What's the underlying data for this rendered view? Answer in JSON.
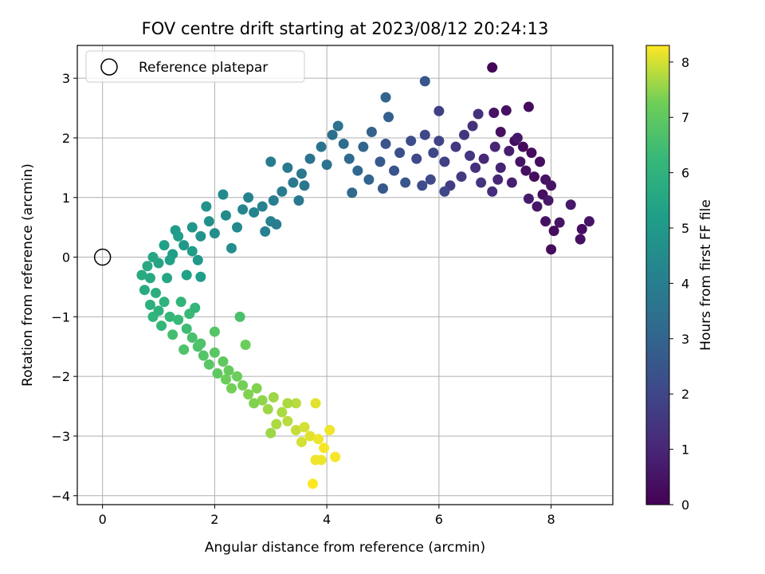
{
  "chart_data": {
    "type": "scatter",
    "title": "FOV centre drift starting at 2023/08/12 20:24:13",
    "xlabel": "Angular distance from reference (arcmin)",
    "ylabel": "Rotation from reference (arcmin)",
    "xlim": [
      -0.45,
      9.1
    ],
    "ylim": [
      -4.15,
      3.55
    ],
    "xticks": [
      0,
      2,
      4,
      6,
      8
    ],
    "yticks": [
      -4,
      -3,
      -2,
      -1,
      0,
      1,
      2,
      3
    ],
    "grid": true,
    "legend": {
      "position": "top-left",
      "entries": [
        "Reference platepar"
      ]
    },
    "reference_point": {
      "x": 0,
      "y": 0
    },
    "colorbar": {
      "label": "Hours from first FF file",
      "range": [
        0,
        8.3
      ],
      "ticks": [
        0,
        1,
        2,
        3,
        4,
        5,
        6,
        7,
        8
      ],
      "colormap": "viridis"
    },
    "series": [
      {
        "color_by": "hours",
        "points": [
          [
            6.95,
            3.18,
            0.1
          ],
          [
            7.6,
            2.52,
            0.3
          ],
          [
            7.2,
            2.46,
            0.4
          ],
          [
            6.98,
            2.42,
            0.5
          ],
          [
            7.1,
            2.1,
            0.4
          ],
          [
            7.35,
            1.95,
            0.3
          ],
          [
            7.5,
            1.85,
            0.2
          ],
          [
            7.65,
            1.75,
            0.25
          ],
          [
            7.8,
            1.6,
            0.35
          ],
          [
            7.45,
            1.6,
            0.5
          ],
          [
            7.55,
            1.45,
            0.4
          ],
          [
            7.7,
            1.35,
            0.3
          ],
          [
            7.9,
            1.3,
            0.45
          ],
          [
            8.0,
            1.2,
            0.5
          ],
          [
            7.85,
            1.05,
            0.35
          ],
          [
            7.95,
            0.95,
            0.6
          ],
          [
            7.75,
            0.85,
            0.55
          ],
          [
            7.9,
            0.6,
            0.4
          ],
          [
            8.15,
            0.58,
            0.5
          ],
          [
            8.35,
            0.88,
            0.6
          ],
          [
            8.05,
            0.44,
            0.3
          ],
          [
            8.55,
            0.47,
            0.35
          ],
          [
            8.68,
            0.6,
            0.5
          ],
          [
            8.52,
            0.3,
            0.4
          ],
          [
            8.0,
            0.13,
            0.3
          ],
          [
            7.6,
            0.98,
            0.7
          ],
          [
            7.3,
            1.25,
            0.8
          ],
          [
            7.4,
            2.0,
            0.6
          ],
          [
            7.25,
            1.78,
            0.75
          ],
          [
            7.1,
            1.5,
            0.9
          ],
          [
            7.0,
            1.85,
            0.95
          ],
          [
            6.8,
            1.65,
            1.0
          ],
          [
            7.05,
            1.3,
            1.0
          ],
          [
            6.95,
            1.1,
            1.2
          ],
          [
            6.7,
            2.4,
            1.3
          ],
          [
            6.6,
            2.2,
            1.3
          ],
          [
            6.45,
            2.05,
            1.4
          ],
          [
            6.3,
            1.85,
            1.5
          ],
          [
            6.55,
            1.7,
            1.5
          ],
          [
            6.65,
            1.5,
            1.3
          ],
          [
            6.4,
            1.35,
            1.6
          ],
          [
            6.75,
            1.25,
            1.4
          ],
          [
            6.2,
            1.2,
            1.7
          ],
          [
            6.1,
            1.6,
            1.8
          ],
          [
            6.0,
            1.95,
            1.9
          ],
          [
            5.9,
            1.75,
            2.0
          ],
          [
            5.75,
            2.05,
            2.0
          ],
          [
            5.6,
            1.65,
            2.1
          ],
          [
            5.5,
            1.95,
            2.2
          ],
          [
            5.85,
            1.3,
            2.1
          ],
          [
            6.1,
            1.1,
            2.0
          ],
          [
            5.3,
            1.75,
            2.3
          ],
          [
            5.2,
            1.45,
            2.4
          ],
          [
            5.05,
            1.9,
            2.4
          ],
          [
            4.95,
            1.6,
            2.6
          ],
          [
            5.4,
            1.25,
            2.5
          ],
          [
            5.0,
            1.15,
            2.6
          ],
          [
            5.7,
            1.2,
            2.2
          ],
          [
            6.0,
            2.45,
            1.8
          ],
          [
            5.75,
            2.95,
            2.5
          ],
          [
            5.05,
            2.68,
            3.0
          ],
          [
            5.1,
            2.35,
            2.8
          ],
          [
            4.8,
            2.1,
            2.9
          ],
          [
            4.65,
            1.85,
            3.0
          ],
          [
            4.4,
            1.65,
            3.2
          ],
          [
            4.55,
            1.45,
            3.1
          ],
          [
            4.75,
            1.3,
            3.0
          ],
          [
            4.3,
            1.9,
            3.3
          ],
          [
            4.1,
            2.05,
            3.4
          ],
          [
            4.45,
            1.08,
            3.2
          ],
          [
            4.0,
            1.55,
            3.5
          ],
          [
            3.9,
            1.85,
            3.6
          ],
          [
            4.2,
            2.2,
            3.5
          ],
          [
            3.7,
            1.65,
            3.6
          ],
          [
            3.55,
            1.4,
            3.7
          ],
          [
            3.4,
            1.25,
            3.8
          ],
          [
            3.2,
            1.1,
            3.9
          ],
          [
            3.05,
            0.95,
            4.0
          ],
          [
            3.3,
            1.5,
            3.8
          ],
          [
            3.6,
            1.2,
            3.7
          ],
          [
            2.85,
            0.85,
            4.1
          ],
          [
            2.6,
            1.0,
            4.2
          ],
          [
            2.7,
            0.75,
            4.2
          ],
          [
            3.0,
            0.6,
            4.1
          ],
          [
            3.1,
            0.55,
            4.0
          ],
          [
            2.9,
            0.43,
            4.1
          ],
          [
            2.5,
            0.8,
            4.3
          ],
          [
            3.0,
            1.6,
            3.9
          ],
          [
            3.5,
            0.95,
            3.8
          ],
          [
            2.4,
            0.5,
            4.4
          ],
          [
            2.2,
            0.7,
            4.5
          ],
          [
            2.0,
            0.4,
            4.6
          ],
          [
            2.3,
            0.15,
            4.6
          ],
          [
            2.15,
            1.05,
            4.5
          ],
          [
            1.9,
            0.6,
            4.7
          ],
          [
            1.75,
            0.35,
            4.8
          ],
          [
            1.6,
            0.5,
            4.9
          ],
          [
            1.45,
            0.2,
            5.0
          ],
          [
            1.3,
            0.45,
            5.1
          ],
          [
            1.25,
            0.05,
            5.2
          ],
          [
            1.1,
            0.2,
            5.3
          ],
          [
            1.2,
            -0.05,
            5.3
          ],
          [
            1.7,
            -0.05,
            5.0
          ],
          [
            1.5,
            -0.3,
            5.3
          ],
          [
            1.0,
            -0.1,
            5.4
          ],
          [
            0.9,
            0.0,
            5.5
          ],
          [
            0.8,
            -0.15,
            5.6
          ],
          [
            0.85,
            -0.35,
            5.6
          ],
          [
            0.7,
            -0.3,
            5.7
          ],
          [
            1.15,
            -0.35,
            5.5
          ],
          [
            1.75,
            -0.33,
            5.2
          ],
          [
            1.85,
            0.85,
            4.8
          ],
          [
            1.6,
            0.1,
            5.1
          ],
          [
            1.35,
            0.35,
            5.2
          ],
          [
            0.75,
            -0.55,
            5.7
          ],
          [
            0.95,
            -0.6,
            5.8
          ],
          [
            0.85,
            -0.8,
            5.9
          ],
          [
            1.0,
            -0.9,
            6.0
          ],
          [
            1.1,
            -0.75,
            6.0
          ],
          [
            0.9,
            -1.0,
            6.1
          ],
          [
            1.05,
            -1.15,
            6.2
          ],
          [
            1.2,
            -1.0,
            6.2
          ],
          [
            1.35,
            -1.05,
            6.3
          ],
          [
            1.5,
            -1.2,
            6.4
          ],
          [
            1.25,
            -1.3,
            6.5
          ],
          [
            1.6,
            -1.35,
            6.6
          ],
          [
            1.7,
            -1.5,
            6.7
          ],
          [
            1.45,
            -1.55,
            6.7
          ],
          [
            1.8,
            -1.65,
            6.8
          ],
          [
            1.9,
            -1.8,
            6.9
          ],
          [
            2.0,
            -1.6,
            6.9
          ],
          [
            2.15,
            -1.75,
            7.0
          ],
          [
            2.05,
            -1.95,
            7.0
          ],
          [
            2.25,
            -1.9,
            7.1
          ],
          [
            2.4,
            -2.0,
            7.2
          ],
          [
            2.5,
            -2.15,
            7.3
          ],
          [
            2.3,
            -2.2,
            7.3
          ],
          [
            2.6,
            -2.3,
            7.4
          ],
          [
            2.75,
            -2.2,
            7.4
          ],
          [
            2.85,
            -2.4,
            7.5
          ],
          [
            2.95,
            -2.55,
            7.6
          ],
          [
            3.05,
            -2.35,
            7.6
          ],
          [
            3.2,
            -2.6,
            7.7
          ],
          [
            3.1,
            -2.8,
            7.7
          ],
          [
            3.3,
            -2.75,
            7.8
          ],
          [
            3.45,
            -2.9,
            7.9
          ],
          [
            3.6,
            -2.85,
            8.0
          ],
          [
            3.55,
            -3.1,
            8.0
          ],
          [
            3.7,
            -3.0,
            8.1
          ],
          [
            3.85,
            -3.05,
            8.2
          ],
          [
            3.95,
            -3.2,
            8.25
          ],
          [
            3.8,
            -3.4,
            8.2
          ],
          [
            3.9,
            -3.4,
            8.2
          ],
          [
            4.15,
            -3.35,
            8.25
          ],
          [
            3.75,
            -3.8,
            8.3
          ],
          [
            4.05,
            -2.9,
            8.2
          ],
          [
            3.8,
            -2.45,
            8.1
          ],
          [
            2.55,
            -1.47,
            7.2
          ],
          [
            1.75,
            -1.45,
            6.7
          ],
          [
            2.45,
            -1.0,
            6.6
          ],
          [
            2.0,
            -1.25,
            6.8
          ],
          [
            1.55,
            -0.95,
            6.3
          ],
          [
            1.65,
            -0.85,
            6.2
          ],
          [
            1.4,
            -0.75,
            6.1
          ],
          [
            3.45,
            -2.45,
            7.8
          ],
          [
            3.3,
            -2.45,
            7.7
          ],
          [
            3.0,
            -2.95,
            7.6
          ],
          [
            2.7,
            -2.45,
            7.4
          ],
          [
            2.2,
            -2.05,
            7.2
          ]
        ]
      }
    ]
  }
}
